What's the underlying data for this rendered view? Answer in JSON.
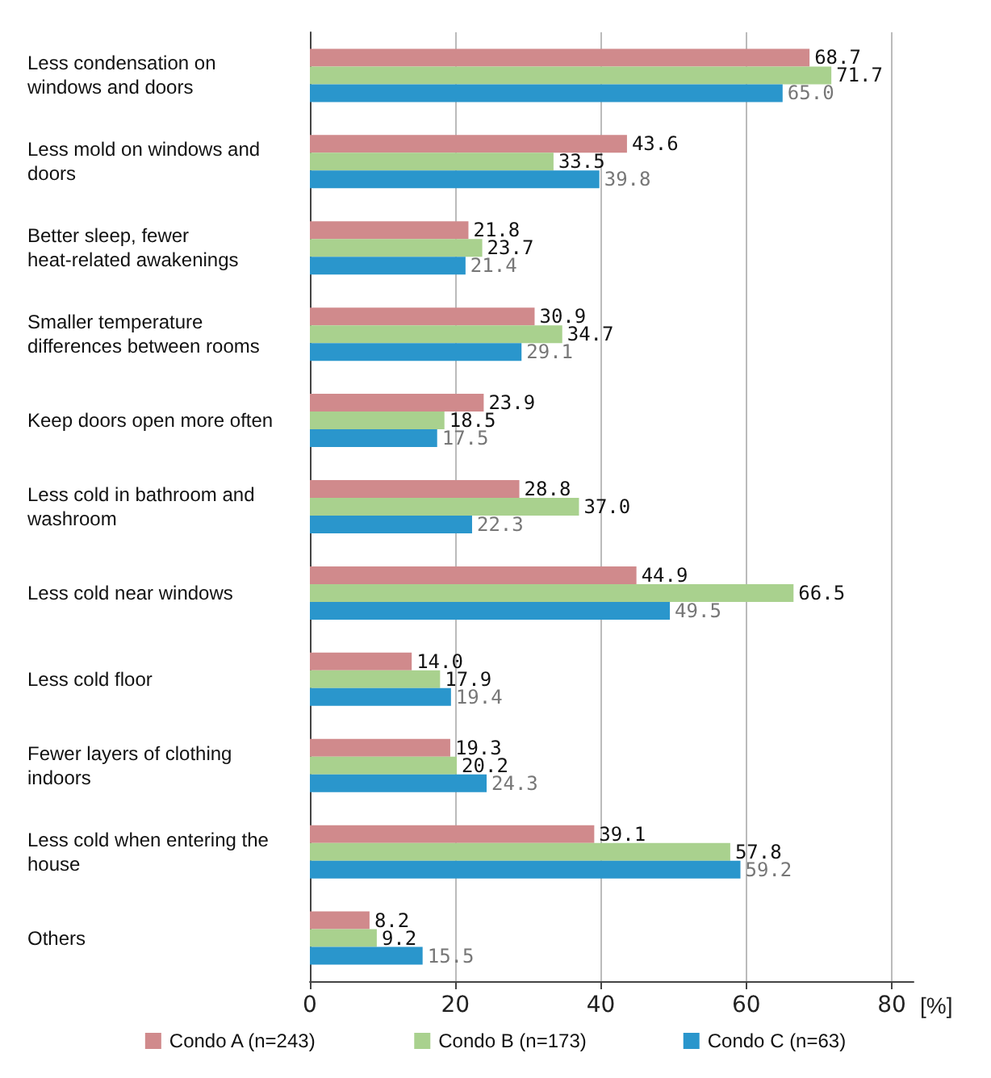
{
  "chart_data": {
    "type": "bar",
    "orientation": "horizontal",
    "xlabel": "[%]",
    "categories": [
      "Less condensation on windows and doors",
      "Less mold on windows and doors",
      "Better sleep, fewer heat-related awakenings",
      "Smaller temperature differences between rooms",
      "Keep doors open more often",
      "Less cold in bathroom and washroom",
      "Less cold near windows",
      "Less cold floor",
      "Fewer layers of clothing indoors",
      "Less cold when entering the house",
      "Others"
    ],
    "series": [
      {
        "name": "Condo A (n=243)",
        "color": "#d08a8c",
        "values": [
          68.7,
          43.6,
          21.8,
          30.9,
          23.9,
          28.8,
          44.9,
          14.0,
          19.3,
          39.1,
          8.2
        ],
        "value_labels": [
          "68.7",
          "43.6",
          "21.8",
          "30.9",
          "23.9",
          "28.8",
          "44.9",
          "14.0",
          "19.3",
          "39.1",
          "8.2"
        ]
      },
      {
        "name": "Condo B (n=173)",
        "color": "#a9d18e",
        "values": [
          71.7,
          33.5,
          23.7,
          34.7,
          18.5,
          37.0,
          66.5,
          17.9,
          20.2,
          57.8,
          9.2
        ],
        "value_labels": [
          "71.7",
          "33.5",
          "23.7",
          "34.7",
          "18.5",
          "37.0",
          "66.5",
          "17.9",
          "20.2",
          "57.8",
          "9.2"
        ]
      },
      {
        "name": "Condo C (n=63)",
        "color": "#2a96cc",
        "values": [
          65.0,
          39.8,
          21.4,
          29.1,
          17.5,
          22.3,
          49.5,
          19.4,
          24.3,
          59.2,
          15.5
        ],
        "value_labels": [
          "65.0",
          "39.8",
          "21.4",
          "29.1",
          "17.5",
          "22.3",
          "49.5",
          "19.4",
          "24.3",
          "59.2",
          "15.5"
        ]
      }
    ],
    "xlim": [
      0,
      83
    ],
    "xticks": [
      0,
      20,
      40,
      60,
      80
    ],
    "grid": "x",
    "legend": "bottom"
  }
}
